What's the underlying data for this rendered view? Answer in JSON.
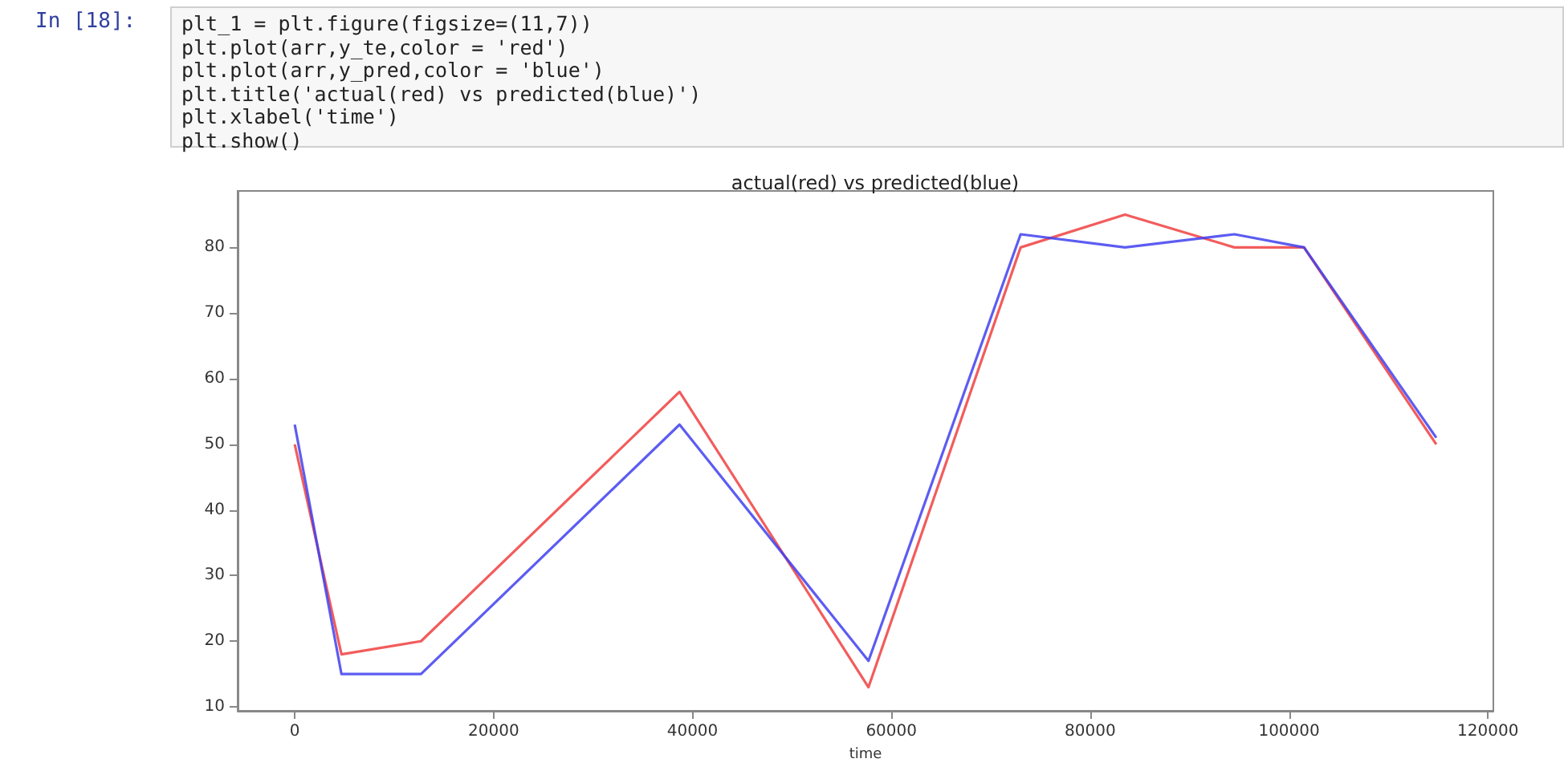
{
  "chart_data": {
    "type": "line",
    "title": "actual(red) vs predicted(blue)",
    "xlabel": "time",
    "annotations": [
      "In [18]:",
      "plt_1 = plt.figure(figsize=(11,7))",
      "plt.plot(arr,y_te,color = 'red')",
      "plt.plot(arr,y_pred,color = 'blue')",
      "plt.title('actual(red) vs predicted(blue)')",
      "plt.xlabel('time')",
      "plt.show()"
    ],
    "x": [
      0,
      4700,
      12700,
      38700,
      57700,
      73000,
      83500,
      94500,
      101500,
      114800
    ],
    "series": [
      {
        "color": "#f04040",
        "values": [
          50,
          18,
          20,
          58,
          13,
          80,
          85,
          80,
          80,
          50
        ]
      },
      {
        "color": "#4040f0",
        "values": [
          53,
          15,
          15,
          53,
          17,
          82,
          80,
          82,
          80,
          51
        ]
      }
    ],
    "xlim": [
      -5740,
      120540
    ],
    "xticks": [
      0,
      20000,
      40000,
      60000,
      80000,
      100000,
      120000
    ],
    "ylim": [
      9.4,
      88.6
    ],
    "yticks": [
      10,
      20,
      30,
      40,
      50,
      60,
      70,
      80
    ],
    "grid": false,
    "marker": "none",
    "line_style": "solid"
  }
}
